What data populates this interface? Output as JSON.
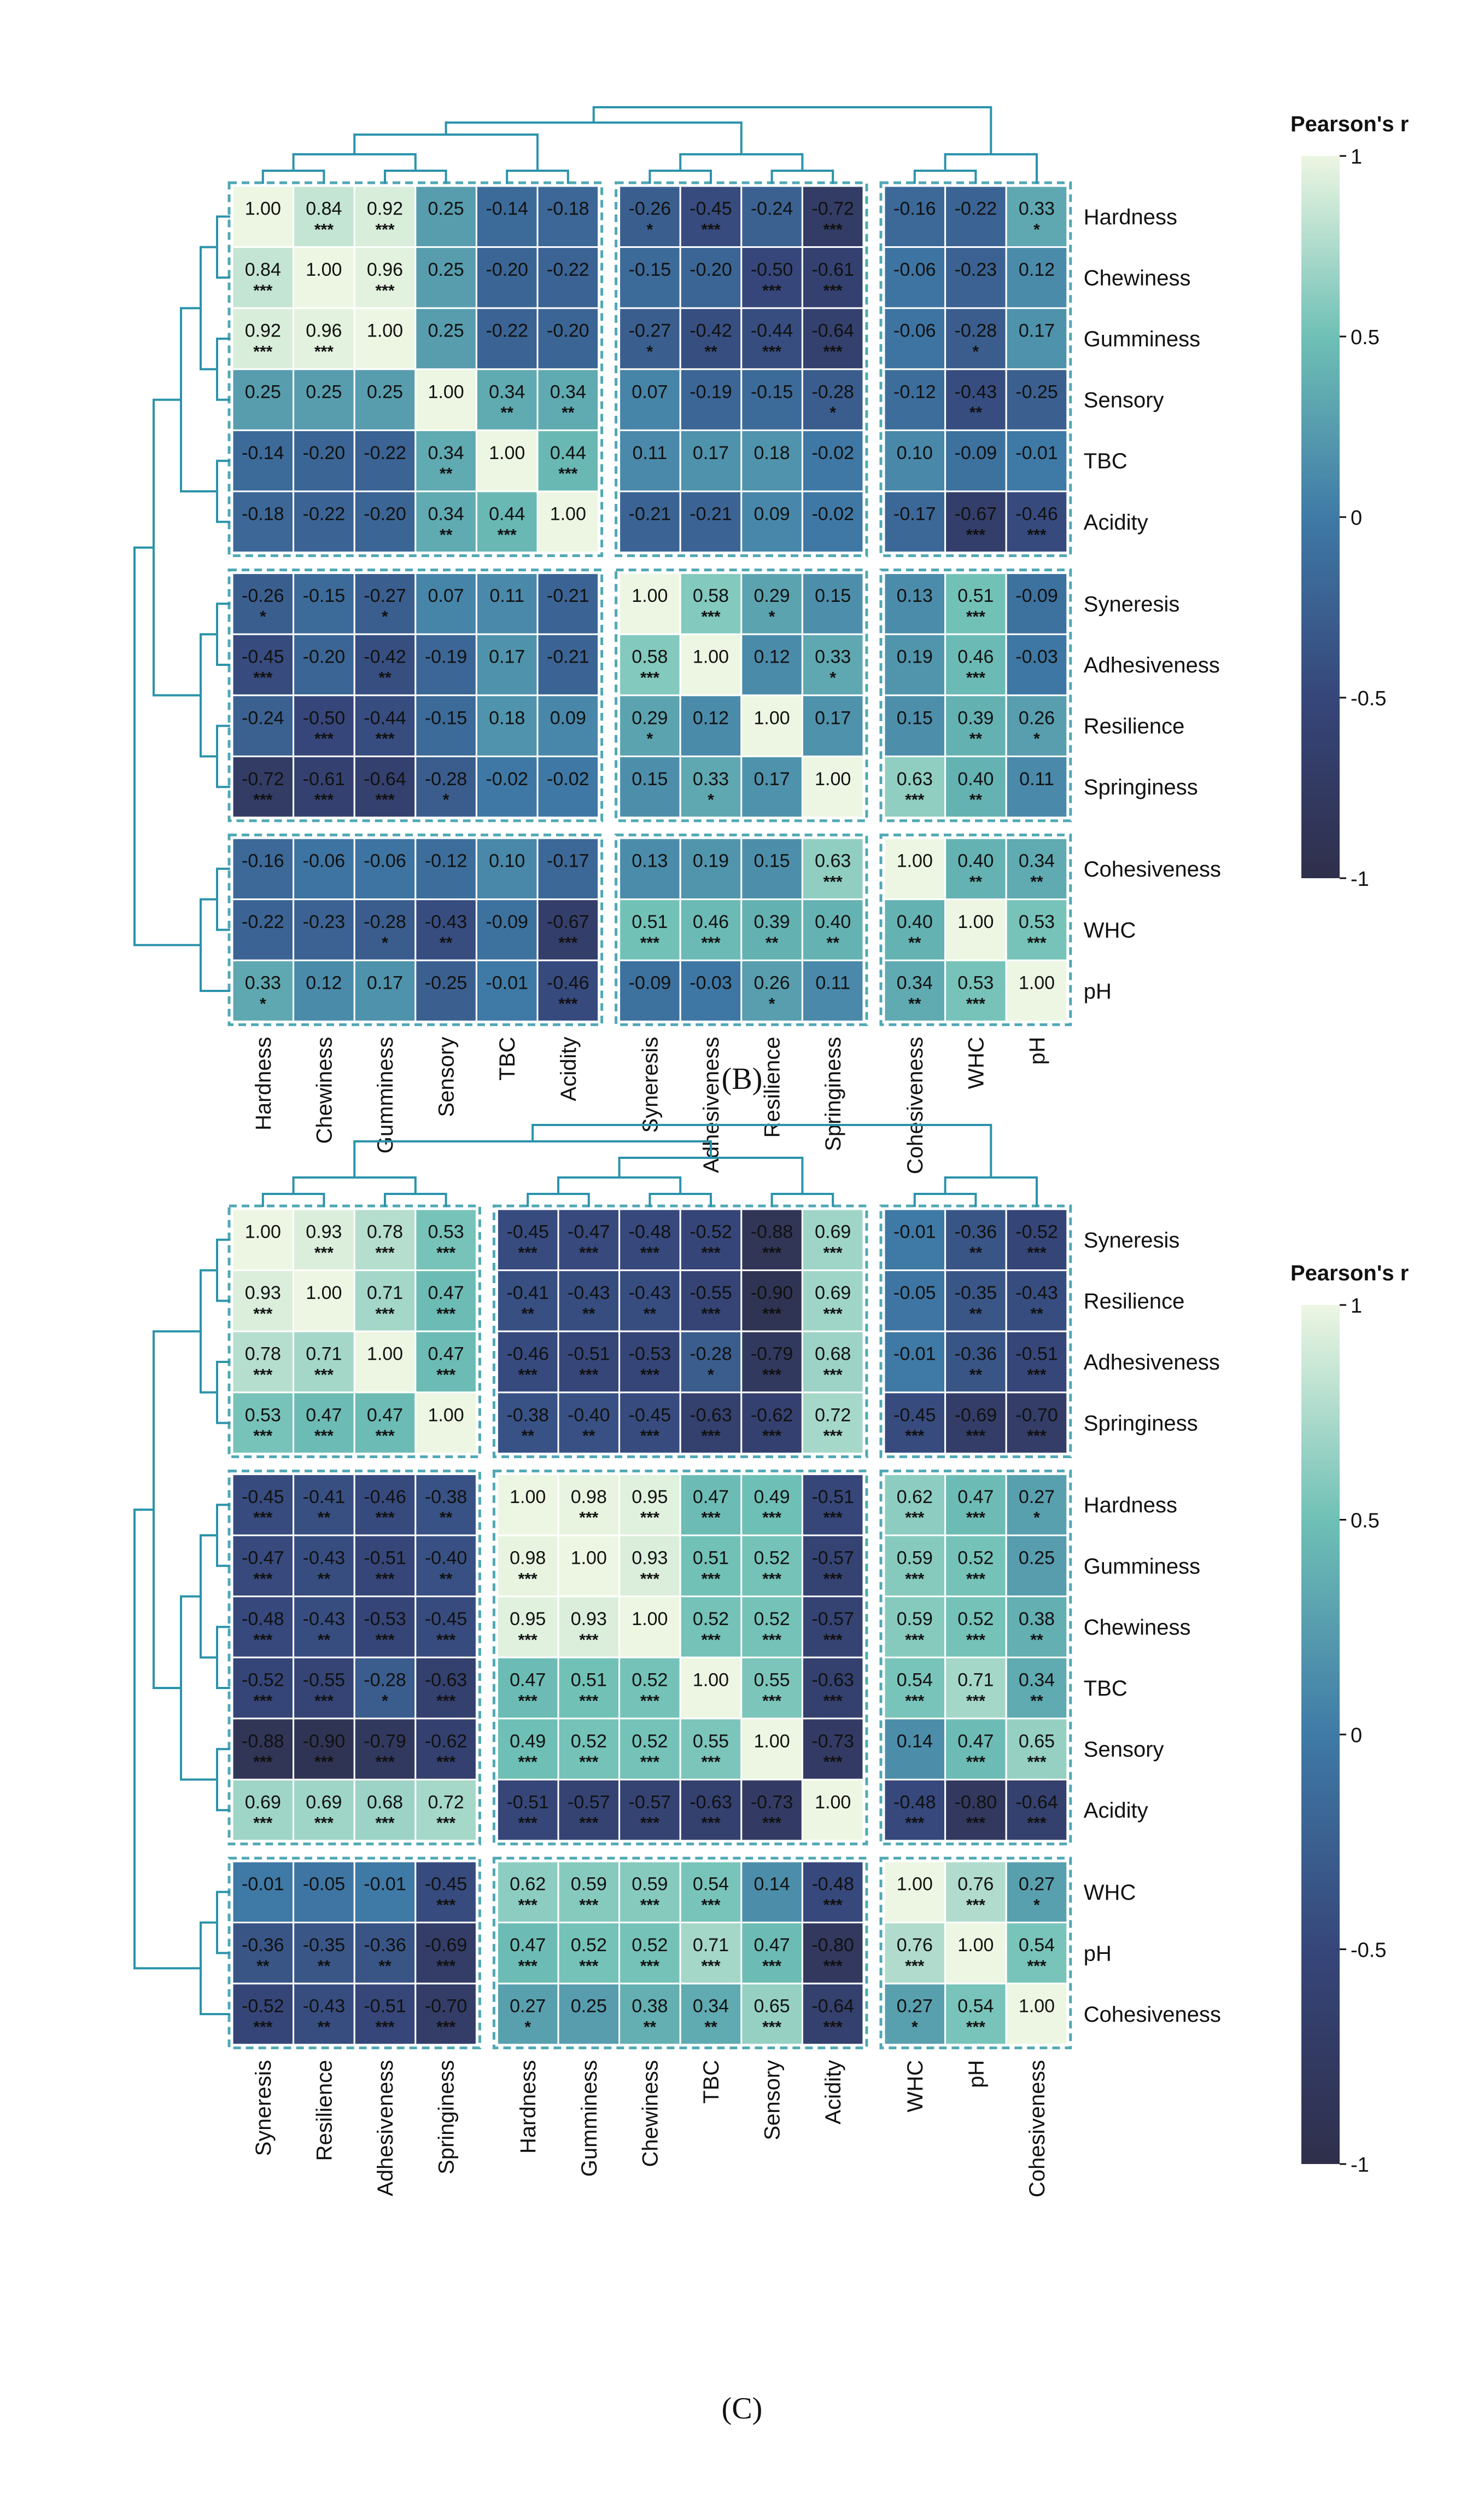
{
  "colorscale": {
    "stops": [
      {
        "v": -1.0,
        "color": "#2f2f4b"
      },
      {
        "v": -0.5,
        "color": "#36467a"
      },
      {
        "v": 0.0,
        "color": "#3f7aa6"
      },
      {
        "v": 0.5,
        "color": "#6fc0b6"
      },
      {
        "v": 1.0,
        "color": "#edf6e2"
      }
    ],
    "grid_color": "#ffffff",
    "box_color": "#4fa8b3",
    "dendro_color": "#2b93ab",
    "text_dark": "#111111",
    "text_light": "#111111"
  },
  "chart_data": [
    {
      "type": "heatmap",
      "panel_label": "(B)",
      "legend_title": "Pearson's r",
      "legend_ticks": [
        "1",
        "0.5",
        "0",
        "-0.5",
        "-1"
      ],
      "legend_range": [
        -1,
        1
      ],
      "row_labels": [
        "Hardness",
        "Chewiness",
        "Gumminess",
        "Sensory",
        "TBC",
        "Acidity",
        "Syneresis",
        "Adhesiveness",
        "Resilience",
        "Springiness",
        "Cohesiveness",
        "WHC",
        "pH"
      ],
      "col_labels": [
        "Hardness",
        "Chewiness",
        "Gumminess",
        "Sensory",
        "TBC",
        "Acidity",
        "Syneresis",
        "Adhesiveness",
        "Resilience",
        "Springiness",
        "Cohesiveness",
        "WHC",
        "pH"
      ],
      "groups": [
        6,
        4,
        3
      ],
      "values": [
        [
          "1.00",
          "0.84",
          "0.92",
          "0.25",
          "-0.14",
          "-0.18",
          "-0.26",
          "-0.45",
          "-0.24",
          "-0.72",
          "-0.16",
          "-0.22",
          "0.33"
        ],
        [
          "0.84",
          "1.00",
          "0.96",
          "0.25",
          "-0.20",
          "-0.22",
          "-0.15",
          "-0.20",
          "-0.50",
          "-0.61",
          "-0.06",
          "-0.23",
          "0.12"
        ],
        [
          "0.92",
          "0.96",
          "1.00",
          "0.25",
          "-0.22",
          "-0.20",
          "-0.27",
          "-0.42",
          "-0.44",
          "-0.64",
          "-0.06",
          "-0.28",
          "0.17"
        ],
        [
          "0.25",
          "0.25",
          "0.25",
          "1.00",
          "0.34",
          "0.34",
          "0.07",
          "-0.19",
          "-0.15",
          "-0.28",
          "-0.12",
          "-0.43",
          "-0.25"
        ],
        [
          "-0.14",
          "-0.20",
          "-0.22",
          "0.34",
          "1.00",
          "0.44",
          "0.11",
          "0.17",
          "0.18",
          "-0.02",
          "0.10",
          "-0.09",
          "-0.01"
        ],
        [
          "-0.18",
          "-0.22",
          "-0.20",
          "0.34",
          "0.44",
          "1.00",
          "-0.21",
          "-0.21",
          "0.09",
          "-0.02",
          "-0.17",
          "-0.67",
          "-0.46"
        ],
        [
          "-0.26",
          "-0.15",
          "-0.27",
          "0.07",
          "0.11",
          "-0.21",
          "1.00",
          "0.58",
          "0.29",
          "0.15",
          "0.13",
          "0.51",
          "-0.09"
        ],
        [
          "-0.45",
          "-0.20",
          "-0.42",
          "-0.19",
          "0.17",
          "-0.21",
          "0.58",
          "1.00",
          "0.12",
          "0.33",
          "0.19",
          "0.46",
          "-0.03"
        ],
        [
          "-0.24",
          "-0.50",
          "-0.44",
          "-0.15",
          "0.18",
          "0.09",
          "0.29",
          "0.12",
          "1.00",
          "0.17",
          "0.15",
          "0.39",
          "0.26"
        ],
        [
          "-0.72",
          "-0.61",
          "-0.64",
          "-0.28",
          "-0.02",
          "-0.02",
          "0.15",
          "0.33",
          "0.17",
          "1.00",
          "0.63",
          "0.40",
          "0.11"
        ],
        [
          "-0.16",
          "-0.06",
          "-0.06",
          "-0.12",
          "0.10",
          "-0.17",
          "0.13",
          "0.19",
          "0.15",
          "0.63",
          "1.00",
          "0.40",
          "0.34"
        ],
        [
          "-0.22",
          "-0.23",
          "-0.28",
          "-0.43",
          "-0.09",
          "-0.67",
          "0.51",
          "0.46",
          "0.39",
          "0.40",
          "0.40",
          "1.00",
          "0.53"
        ],
        [
          "0.33",
          "0.12",
          "0.17",
          "-0.25",
          "-0.01",
          "-0.46",
          "-0.09",
          "-0.03",
          "0.26",
          "0.11",
          "0.34",
          "0.53",
          "1.00"
        ]
      ],
      "stars": [
        [
          "",
          "***",
          "***",
          "",
          "",
          "",
          "*",
          "***",
          "",
          "***",
          "",
          "",
          "*"
        ],
        [
          "***",
          "",
          "***",
          "",
          "",
          "",
          "",
          "",
          "***",
          "***",
          "",
          "",
          ""
        ],
        [
          "***",
          "***",
          "",
          "",
          "",
          "",
          "*",
          "**",
          "***",
          "***",
          "",
          "*",
          ""
        ],
        [
          "",
          "",
          "",
          "",
          "**",
          "**",
          "",
          "",
          "",
          "*",
          "",
          "**",
          ""
        ],
        [
          "",
          "",
          "",
          "**",
          "",
          "***",
          "",
          "",
          "",
          "",
          "",
          "",
          ""
        ],
        [
          "",
          "",
          "",
          "**",
          "***",
          "",
          "",
          "",
          "",
          "",
          "",
          "***",
          "***"
        ],
        [
          "*",
          "",
          "*",
          "",
          "",
          "",
          "",
          "***",
          "*",
          "",
          "",
          "***",
          ""
        ],
        [
          "***",
          "",
          "**",
          "",
          "",
          "",
          "***",
          "",
          "",
          "*",
          "",
          "***",
          ""
        ],
        [
          "",
          "***",
          "***",
          "",
          "",
          "",
          "*",
          "",
          "",
          "",
          "",
          "**",
          "*"
        ],
        [
          "***",
          "***",
          "***",
          "*",
          "",
          "",
          "",
          "*",
          "",
          "",
          "***",
          "**",
          ""
        ],
        [
          "",
          "",
          "",
          "",
          "",
          "",
          "",
          "",
          "",
          "***",
          "",
          "**",
          "**"
        ],
        [
          "",
          "",
          "*",
          "**",
          "",
          "***",
          "***",
          "***",
          "**",
          "**",
          "**",
          "",
          "***"
        ],
        [
          "*",
          "",
          "",
          "",
          "",
          "***",
          "",
          "",
          "*",
          "",
          "**",
          "***",
          ""
        ]
      ]
    },
    {
      "type": "heatmap",
      "panel_label": "(C)",
      "legend_title": "Pearson's r",
      "legend_ticks": [
        "1",
        "0.5",
        "0",
        "-0.5",
        "-1"
      ],
      "legend_range": [
        -1,
        1
      ],
      "row_labels": [
        "Syneresis",
        "Resilience",
        "Adhesiveness",
        "Springiness",
        "Hardness",
        "Gumminess",
        "Chewiness",
        "TBC",
        "Sensory",
        "Acidity",
        "WHC",
        "pH",
        "Cohesiveness"
      ],
      "col_labels": [
        "Syneresis",
        "Resilience",
        "Adhesiveness",
        "Springiness",
        "Hardness",
        "Gumminess",
        "Chewiness",
        "TBC",
        "Sensory",
        "Acidity",
        "WHC",
        "pH",
        "Cohesiveness"
      ],
      "groups": [
        4,
        6,
        3
      ],
      "values": [
        [
          "1.00",
          "0.93",
          "0.78",
          "0.53",
          "-0.45",
          "-0.47",
          "-0.48",
          "-0.52",
          "-0.88",
          "0.69",
          "-0.01",
          "-0.36",
          "-0.52"
        ],
        [
          "0.93",
          "1.00",
          "0.71",
          "0.47",
          "-0.41",
          "-0.43",
          "-0.43",
          "-0.55",
          "-0.90",
          "0.69",
          "-0.05",
          "-0.35",
          "-0.43"
        ],
        [
          "0.78",
          "0.71",
          "1.00",
          "0.47",
          "-0.46",
          "-0.51",
          "-0.53",
          "-0.28",
          "-0.79",
          "0.68",
          "-0.01",
          "-0.36",
          "-0.51"
        ],
        [
          "0.53",
          "0.47",
          "0.47",
          "1.00",
          "-0.38",
          "-0.40",
          "-0.45",
          "-0.63",
          "-0.62",
          "0.72",
          "-0.45",
          "-0.69",
          "-0.70"
        ],
        [
          "-0.45",
          "-0.41",
          "-0.46",
          "-0.38",
          "1.00",
          "0.98",
          "0.95",
          "0.47",
          "0.49",
          "-0.51",
          "0.62",
          "0.47",
          "0.27"
        ],
        [
          "-0.47",
          "-0.43",
          "-0.51",
          "-0.40",
          "0.98",
          "1.00",
          "0.93",
          "0.51",
          "0.52",
          "-0.57",
          "0.59",
          "0.52",
          "0.25"
        ],
        [
          "-0.48",
          "-0.43",
          "-0.53",
          "-0.45",
          "0.95",
          "0.93",
          "1.00",
          "0.52",
          "0.52",
          "-0.57",
          "0.59",
          "0.52",
          "0.38"
        ],
        [
          "-0.52",
          "-0.55",
          "-0.28",
          "-0.63",
          "0.47",
          "0.51",
          "0.52",
          "1.00",
          "0.55",
          "-0.63",
          "0.54",
          "0.71",
          "0.34"
        ],
        [
          "-0.88",
          "-0.90",
          "-0.79",
          "-0.62",
          "0.49",
          "0.52",
          "0.52",
          "0.55",
          "1.00",
          "-0.73",
          "0.14",
          "0.47",
          "0.65"
        ],
        [
          "0.69",
          "0.69",
          "0.68",
          "0.72",
          "-0.51",
          "-0.57",
          "-0.57",
          "-0.63",
          "-0.73",
          "1.00",
          "-0.48",
          "-0.80",
          "-0.64"
        ],
        [
          "-0.01",
          "-0.05",
          "-0.01",
          "-0.45",
          "0.62",
          "0.59",
          "0.59",
          "0.54",
          "0.14",
          "-0.48",
          "1.00",
          "0.76",
          "0.27"
        ],
        [
          "-0.36",
          "-0.35",
          "-0.36",
          "-0.69",
          "0.47",
          "0.52",
          "0.52",
          "0.71",
          "0.47",
          "-0.80",
          "0.76",
          "1.00",
          "0.54"
        ],
        [
          "-0.52",
          "-0.43",
          "-0.51",
          "-0.70",
          "0.27",
          "0.25",
          "0.38",
          "0.34",
          "0.65",
          "-0.64",
          "0.27",
          "0.54",
          "1.00"
        ]
      ],
      "stars": [
        [
          "",
          "***",
          "***",
          "***",
          "***",
          "***",
          "***",
          "***",
          "***",
          "***",
          "",
          "**",
          "***"
        ],
        [
          "***",
          "",
          "***",
          "***",
          "**",
          "**",
          "**",
          "***",
          "***",
          "***",
          "",
          "**",
          "**"
        ],
        [
          "***",
          "***",
          "",
          "***",
          "***",
          "***",
          "***",
          "*",
          "***",
          "***",
          "",
          "**",
          "***"
        ],
        [
          "***",
          "***",
          "***",
          "",
          "**",
          "**",
          "***",
          "***",
          "***",
          "***",
          "***",
          "***",
          "***"
        ],
        [
          "***",
          "**",
          "***",
          "**",
          "",
          "***",
          "***",
          "***",
          "***",
          "***",
          "***",
          "***",
          "*"
        ],
        [
          "***",
          "**",
          "***",
          "**",
          "***",
          "",
          "***",
          "***",
          "***",
          "***",
          "***",
          "***",
          ""
        ],
        [
          "***",
          "**",
          "***",
          "***",
          "***",
          "***",
          "",
          "***",
          "***",
          "***",
          "***",
          "***",
          "**"
        ],
        [
          "***",
          "***",
          "*",
          "***",
          "***",
          "***",
          "***",
          "",
          "***",
          "***",
          "***",
          "***",
          "**"
        ],
        [
          "***",
          "***",
          "***",
          "***",
          "***",
          "***",
          "***",
          "***",
          "",
          "***",
          "",
          "***",
          "***"
        ],
        [
          "***",
          "***",
          "***",
          "***",
          "***",
          "***",
          "***",
          "***",
          "***",
          "",
          "***",
          "***",
          "***"
        ],
        [
          "",
          "",
          "",
          "***",
          "***",
          "***",
          "***",
          "***",
          "",
          "***",
          "",
          "***",
          "*"
        ],
        [
          "**",
          "**",
          "**",
          "***",
          "***",
          "***",
          "***",
          "***",
          "***",
          "***",
          "***",
          "",
          "***"
        ],
        [
          "***",
          "**",
          "***",
          "***",
          "*",
          "",
          "**",
          "**",
          "***",
          "***",
          "*",
          "***",
          ""
        ]
      ]
    }
  ]
}
